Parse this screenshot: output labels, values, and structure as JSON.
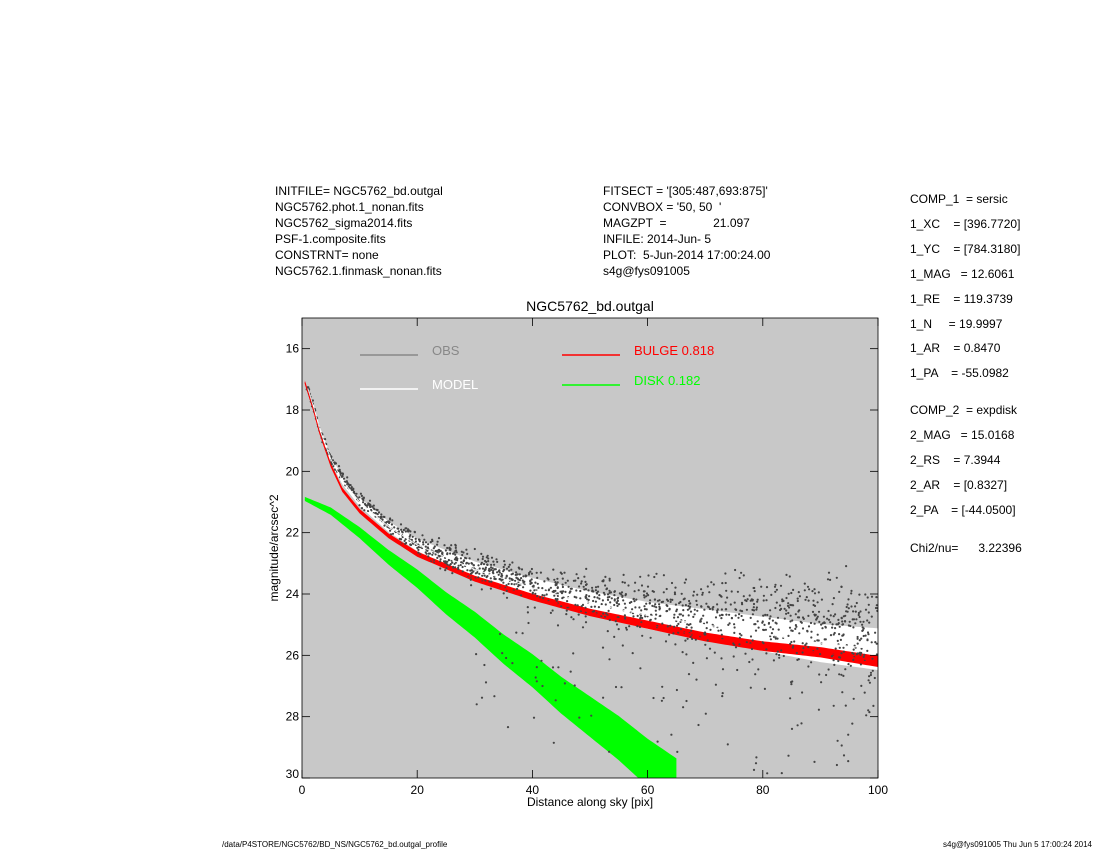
{
  "header_left": [
    "INITFILE= NGC5762_bd.outgal",
    "NGC5762.phot.1_nonan.fits",
    "NGC5762_sigma2014.fits",
    "PSF-1.composite.fits",
    "CONSTRNT= none",
    "NGC5762.1.finmask_nonan.fits"
  ],
  "header_mid": [
    "FITSECT = '[305:487,693:875]'",
    "CONVBOX = '50, 50  '",
    "MAGZPT  =              21.097",
    "INFILE: 2014-Jun- 5",
    "PLOT:  5-Jun-2014 17:00:24.00",
    "s4g@fys091005"
  ],
  "params": [
    "COMP_1  = sersic",
    "1_XC    = [396.7720]",
    "1_YC    = [784.3180]",
    "1_MAG   = 12.6061",
    "1_RE    = 119.3739",
    "1_N     = 19.9997",
    "1_AR    = 0.8470",
    "1_PA    = -55.0982",
    "COMP_2  = expdisk",
    "2_MAG   = 15.0168",
    "2_RS    = 7.3944",
    "2_AR    = [0.8327]",
    "2_PA    = [-44.0500]",
    "Chi2/nu=      3.22396"
  ],
  "footer": {
    "left": "/data/P4STORE/NGC5762/BD_NS/NGC5762_bd.outgal_profile",
    "right": "s4g@fys091005  Thu Jun  5 17:00:24 2014"
  },
  "chart_data": {
    "type": "scatter",
    "title": "NGC5762_bd.outgal",
    "xlabel": "Distance along sky [pix]",
    "ylabel": "magnitude/arcsec^2",
    "xlim": [
      0,
      100
    ],
    "ylim": [
      30,
      15
    ],
    "y_inverted": true,
    "xticks": [
      0,
      20,
      40,
      60,
      80,
      100
    ],
    "yticks": [
      16,
      18,
      20,
      22,
      24,
      26,
      28,
      30
    ],
    "grid": false,
    "background": "#c8c8c8",
    "legend": [
      {
        "label": "OBS",
        "color": "#888888"
      },
      {
        "label": "MODEL",
        "color": "#ffffff"
      },
      {
        "label": "BULGE  0.818",
        "color": "#ff0000"
      },
      {
        "label": "DISK  0.182",
        "color": "#00ff00"
      }
    ],
    "series": [
      {
        "name": "OBS",
        "color": "#444444",
        "x": [
          1,
          2,
          3,
          5,
          7,
          10,
          15,
          20,
          25,
          30,
          35,
          40,
          50,
          60,
          70,
          80,
          90,
          100
        ],
        "y": [
          17.3,
          17.9,
          18.6,
          19.6,
          20.2,
          20.9,
          21.7,
          22.3,
          22.8,
          23.1,
          23.4,
          23.7,
          24.1,
          24.4,
          24.7,
          24.9,
          25.1,
          25.3
        ]
      },
      {
        "name": "MODEL",
        "color": "#ffffff",
        "x": [
          1,
          2,
          3,
          5,
          7,
          10,
          15,
          20,
          25,
          30,
          35,
          40,
          50,
          60,
          70,
          80,
          90,
          100
        ],
        "y": [
          17.3,
          17.9,
          18.6,
          19.6,
          20.3,
          21.0,
          21.8,
          22.4,
          22.8,
          23.2,
          23.5,
          23.8,
          24.3,
          24.7,
          25.0,
          25.3,
          25.6,
          25.8
        ]
      },
      {
        "name": "BULGE  0.818",
        "color": "#ff0000",
        "x": [
          0.5,
          1,
          2,
          3,
          5,
          7,
          10,
          15,
          20,
          25,
          30,
          35,
          40,
          50,
          60,
          70,
          80,
          90,
          100
        ],
        "y": [
          17.1,
          17.4,
          18.0,
          18.7,
          19.8,
          20.6,
          21.3,
          22.1,
          22.7,
          23.1,
          23.5,
          23.8,
          24.1,
          24.6,
          25.0,
          25.4,
          25.7,
          25.9,
          26.2
        ]
      },
      {
        "name": "DISK  0.182",
        "color": "#00ff00",
        "x": [
          0.5,
          5,
          10,
          15,
          20,
          25,
          30,
          35,
          40,
          45,
          50,
          55,
          60,
          65
        ],
        "y": [
          20.9,
          21.3,
          22.0,
          22.8,
          23.5,
          24.3,
          25.0,
          25.8,
          26.5,
          27.3,
          28.0,
          28.7,
          29.5,
          30.2
        ]
      }
    ]
  }
}
